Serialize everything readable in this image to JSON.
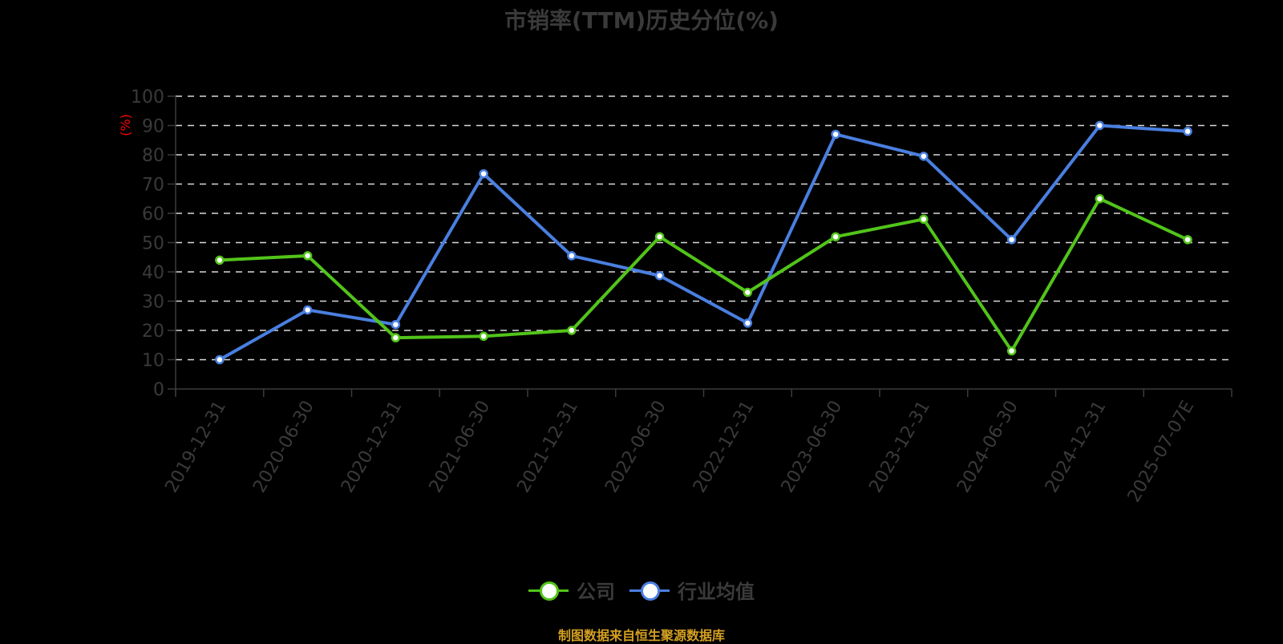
{
  "title": "市销率(TTM)历史分位(%)",
  "y_unit_label": "(%)",
  "legend": [
    {
      "label": "公司",
      "color": "#52c41a"
    },
    {
      "label": "行业均值",
      "color": "#4a7fe0"
    }
  ],
  "source": "制图数据来自恒生聚源数据库",
  "colors": {
    "company": "#52c41a",
    "industry": "#4a7fe0",
    "grid": "#d9d9d9",
    "axis": "#3a3a3a",
    "unit_label": "#ff0000",
    "source": "#d4a020"
  },
  "chart_data": {
    "type": "line",
    "title": "市销率(TTM)历史分位(%)",
    "xlabel": "",
    "ylabel": "(%)",
    "ylim": [
      0,
      100
    ],
    "yticks": [
      0,
      10,
      20,
      30,
      40,
      50,
      60,
      70,
      80,
      90,
      100
    ],
    "grid": true,
    "legend_position": "bottom",
    "categories": [
      "2019-12-31",
      "2020-06-30",
      "2020-12-31",
      "2021-06-30",
      "2021-12-31",
      "2022-06-30",
      "2022-12-31",
      "2023-06-30",
      "2023-12-31",
      "2024-06-30",
      "2024-12-31",
      "2025-07-07E"
    ],
    "series": [
      {
        "name": "公司",
        "values": [
          44,
          45.5,
          17.5,
          18,
          20,
          52,
          33,
          52,
          58,
          13,
          65,
          51
        ]
      },
      {
        "name": "行业均值",
        "values": [
          10,
          27,
          22,
          73.5,
          45.5,
          38.7,
          22.5,
          87,
          79.5,
          51,
          90,
          88
        ]
      }
    ]
  }
}
